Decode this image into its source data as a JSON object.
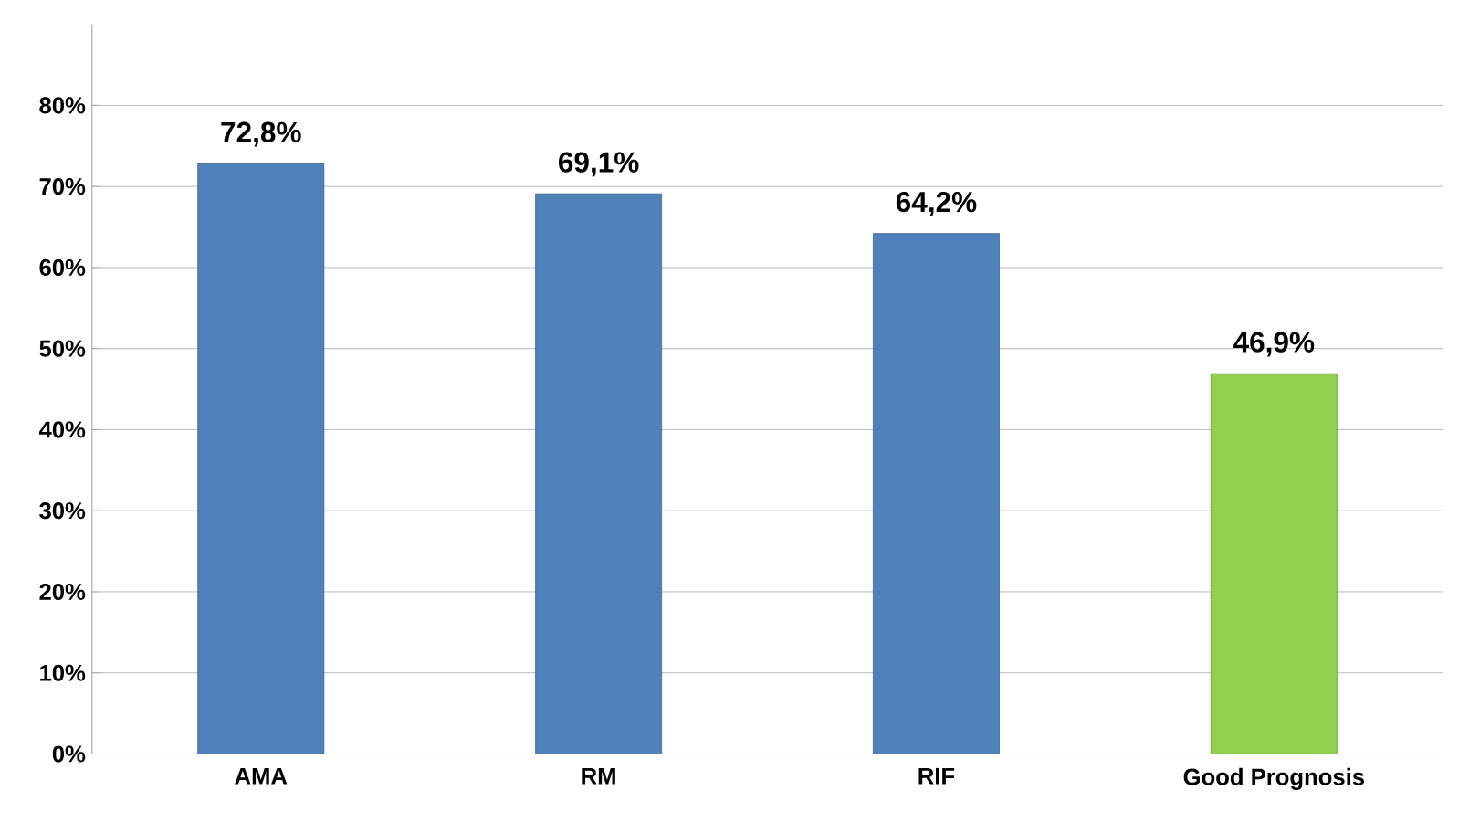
{
  "chart_data": {
    "type": "bar",
    "categories": [
      "AMA",
      "RM",
      "RIF",
      "Good Prognosis"
    ],
    "values": [
      72.8,
      69.1,
      64.2,
      46.9
    ],
    "colors": [
      "#4f81bd",
      "#4f81bd",
      "#4f81bd",
      "#92d050"
    ],
    "value_labels": [
      "72,8%",
      "69,1%",
      "64,2%",
      "46,9%"
    ],
    "ylim": [
      0,
      90
    ],
    "yticks": [
      {
        "value": 0,
        "label": "0%"
      },
      {
        "value": 10,
        "label": "10%"
      },
      {
        "value": 20,
        "label": "20%"
      },
      {
        "value": 30,
        "label": "30%"
      },
      {
        "value": 40,
        "label": "40%"
      },
      {
        "value": 50,
        "label": "50%"
      },
      {
        "value": 60,
        "label": "60%"
      },
      {
        "value": 70,
        "label": "70%"
      },
      {
        "value": 80,
        "label": "80%"
      }
    ],
    "grid": "y"
  }
}
